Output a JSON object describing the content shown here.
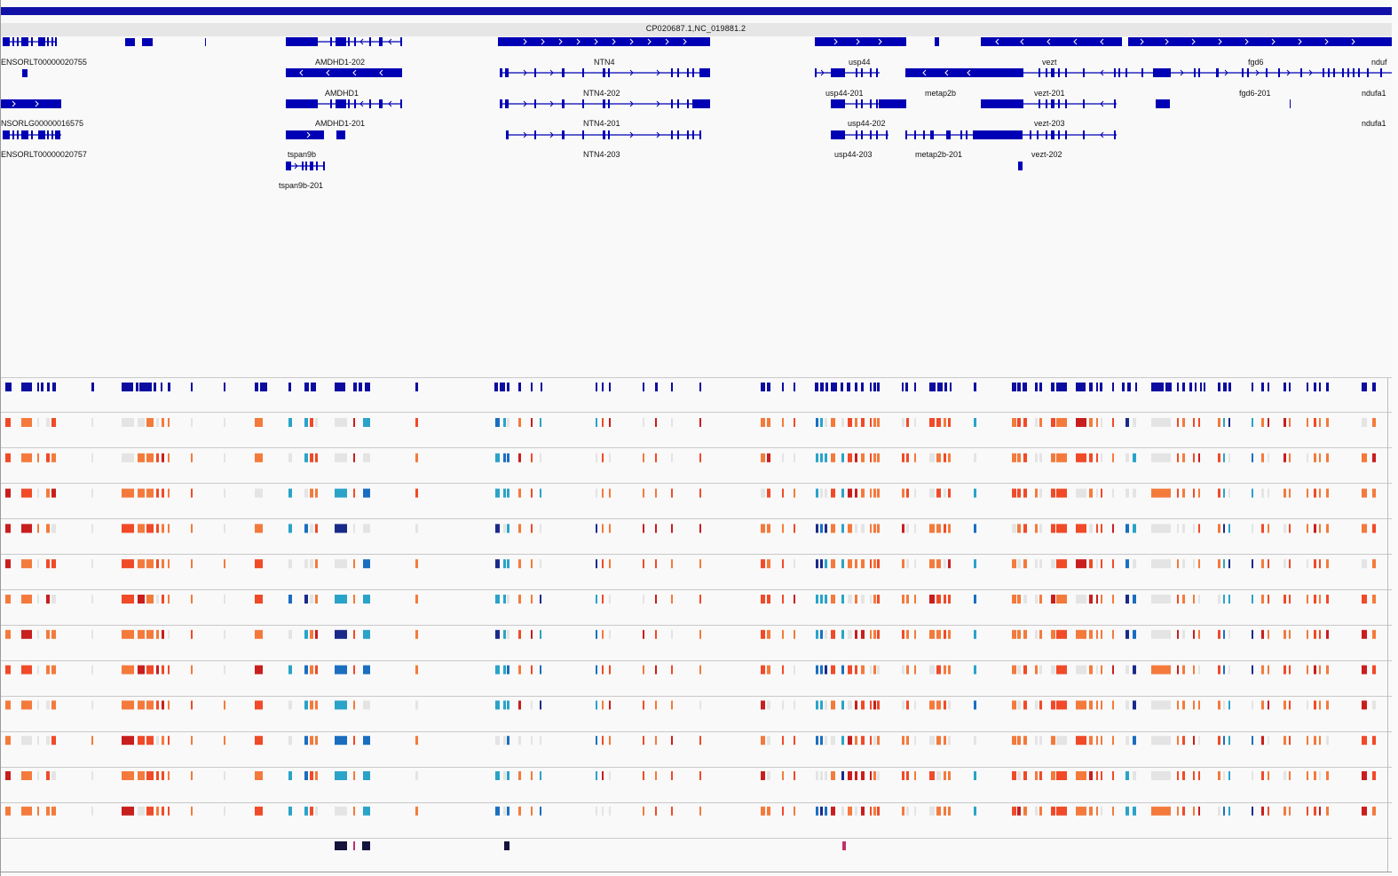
{
  "app": {
    "window": "genome-browser"
  },
  "header": {
    "chromosome": "CP020687.1,NC_019881.2"
  },
  "colors": {
    "gene_blue": "#0000b4",
    "orange": "#f47a3c",
    "red_orange": "#f04a28",
    "dark_red": "#c81e1e",
    "light_gray": "#e4e4e4",
    "cyan": "#2aa3c8",
    "blue": "#1a6ec0",
    "dark_blue": "#1a2a8a",
    "navy": "#14143c",
    "magenta": "#c0306a"
  },
  "gene_labels": [
    {
      "id": "l1",
      "text": "ENSORLT00000020755"
    },
    {
      "id": "l2",
      "text": "AMDHD1-202"
    },
    {
      "id": "l3",
      "text": "NTN4"
    },
    {
      "id": "l4",
      "text": "usp44"
    },
    {
      "id": "l5",
      "text": "vezt"
    },
    {
      "id": "l6",
      "text": "fgd6"
    },
    {
      "id": "l7",
      "text": "nduf"
    },
    {
      "id": "l8",
      "text": "AMDHD1"
    },
    {
      "id": "l9",
      "text": "NTN4-202"
    },
    {
      "id": "l10",
      "text": "usp44-201"
    },
    {
      "id": "l11",
      "text": "metap2b"
    },
    {
      "id": "l12",
      "text": "vezt-201"
    },
    {
      "id": "l13",
      "text": "fgd6-201"
    },
    {
      "id": "l14",
      "text": "ndufa1"
    },
    {
      "id": "l15",
      "text": "NSORLG00000016575"
    },
    {
      "id": "l16",
      "text": "AMDHD1-201"
    },
    {
      "id": "l17",
      "text": "NTN4-201"
    },
    {
      "id": "l18",
      "text": "usp44-202"
    },
    {
      "id": "l19",
      "text": "vezt-203"
    },
    {
      "id": "l20",
      "text": "ndufa1"
    },
    {
      "id": "l21",
      "text": "ENSORLT00000020757"
    },
    {
      "id": "l22",
      "text": "tspan9b"
    },
    {
      "id": "l23",
      "text": "NTN4-203"
    },
    {
      "id": "l24",
      "text": "usp44-203"
    },
    {
      "id": "l25",
      "text": "metap2b-201"
    },
    {
      "id": "l26",
      "text": "vezt-202"
    },
    {
      "id": "l27",
      "text": "tspan9b-201"
    }
  ],
  "tracks": {
    "feature_track": "feature-blocks",
    "sample_track_count": 12,
    "annotation_track": "bottom-marks"
  }
}
